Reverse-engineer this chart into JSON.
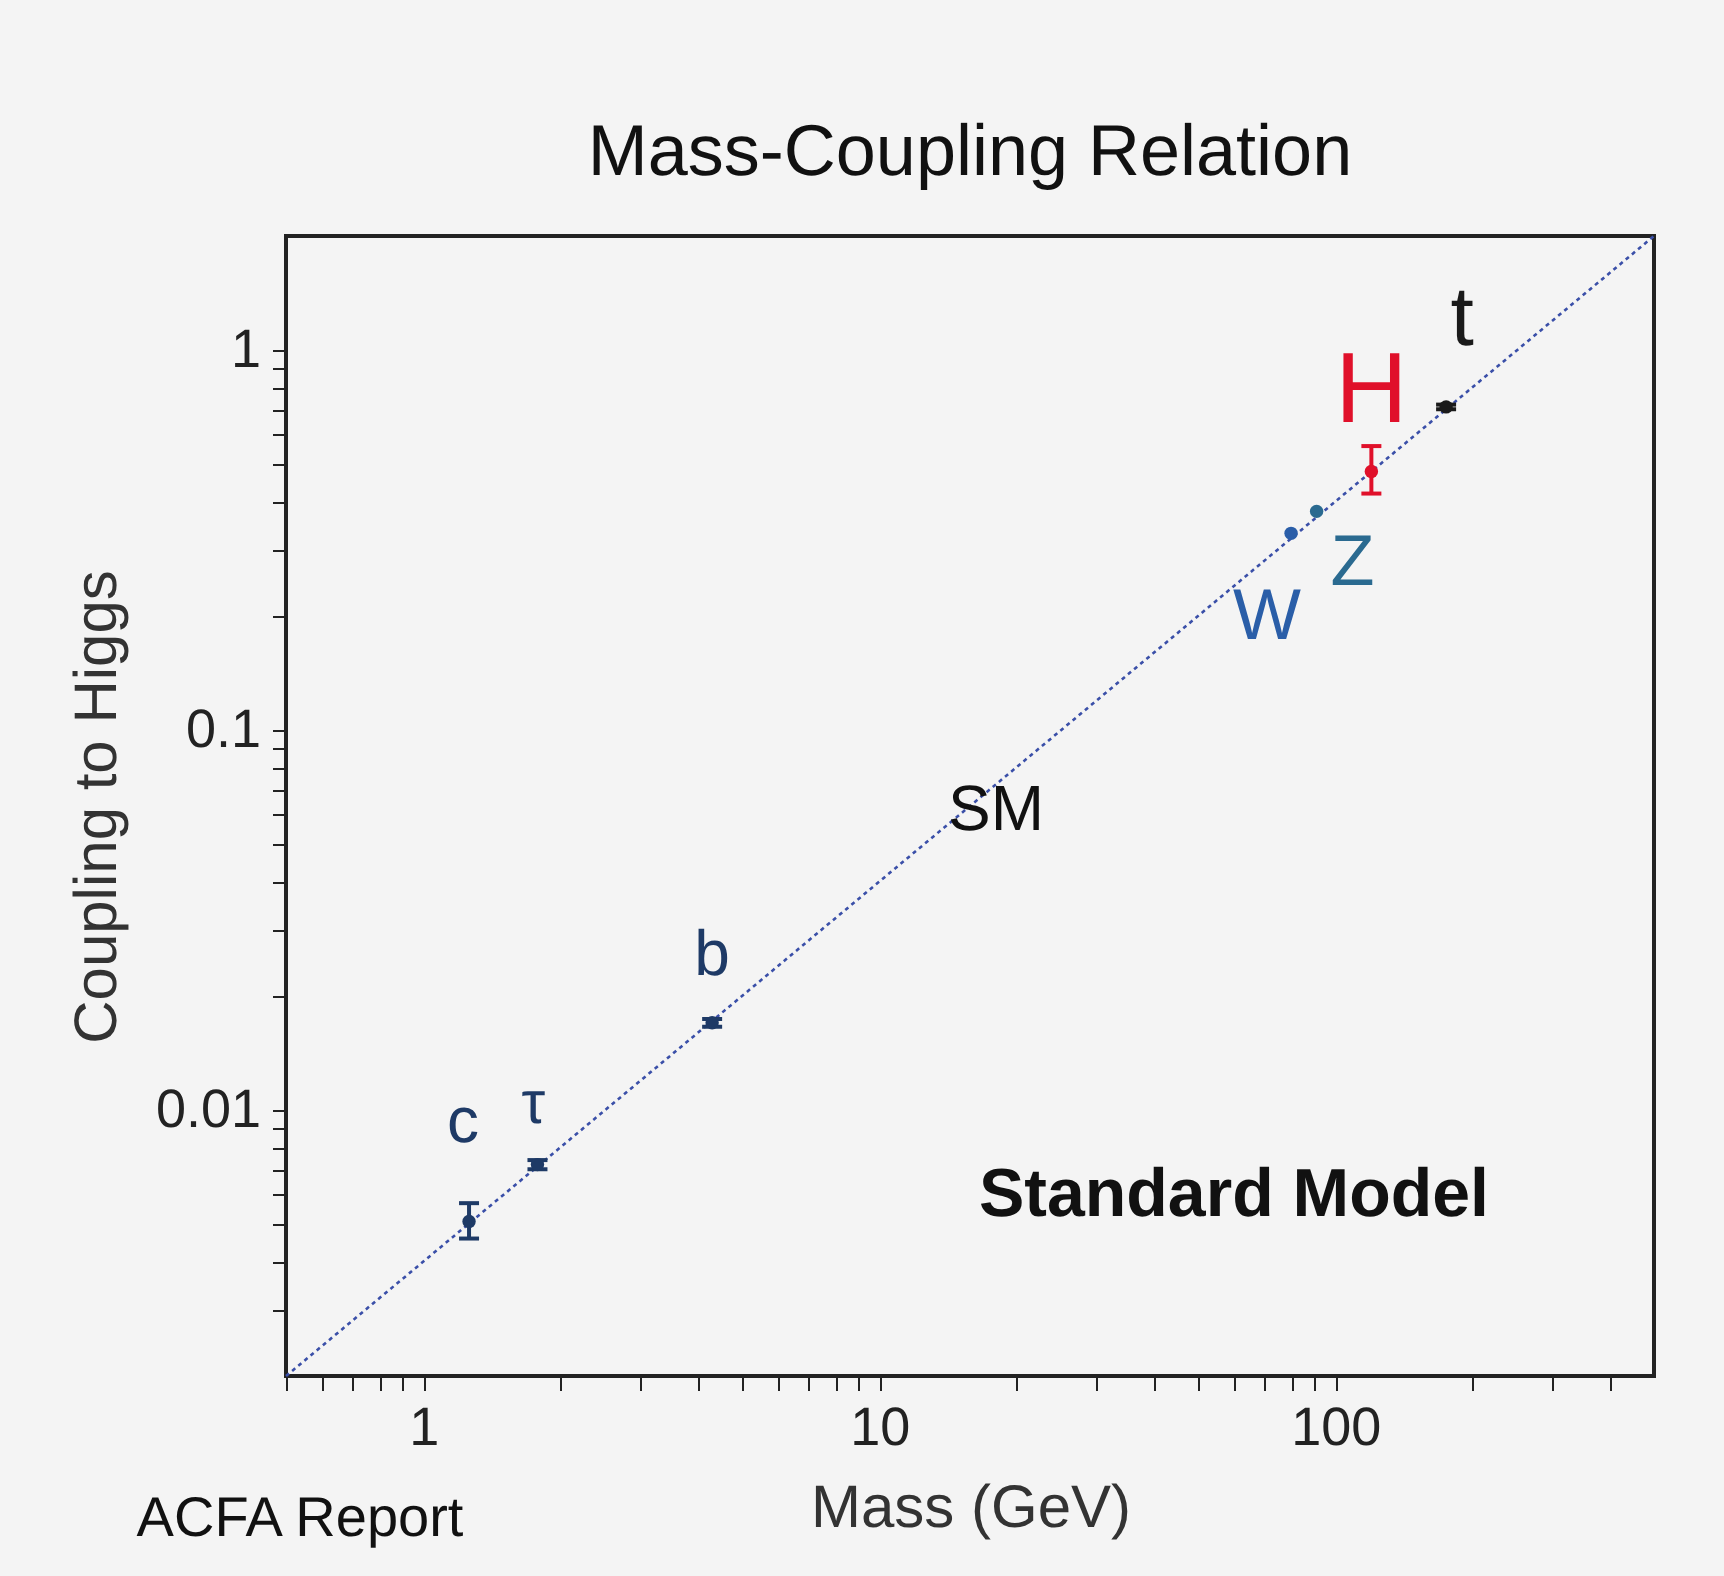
{
  "chart_data": {
    "type": "scatter",
    "title": "Mass-Coupling Relation",
    "xlabel": "Mass (GeV)",
    "ylabel": "Coupling to Higgs",
    "log": "xy",
    "grid": false,
    "marker": "circle",
    "xlim": [
      0.5,
      500
    ],
    "ylim": [
      0.002,
      2
    ],
    "xticks": [
      {
        "value": 0.5,
        "label": null
      },
      {
        "value": 0.6,
        "label": null
      },
      {
        "value": 0.7,
        "label": null
      },
      {
        "value": 0.8,
        "label": null
      },
      {
        "value": 0.9,
        "label": null
      },
      1,
      {
        "value": 2,
        "label": null
      },
      {
        "value": 3,
        "label": null
      },
      {
        "value": 4,
        "label": null
      },
      {
        "value": 5,
        "label": null
      },
      {
        "value": 6,
        "label": null
      },
      {
        "value": 7,
        "label": null
      },
      {
        "value": 8,
        "label": null
      },
      {
        "value": 9,
        "label": null
      },
      10,
      {
        "value": 20,
        "label": null
      },
      {
        "value": 30,
        "label": null
      },
      {
        "value": 40,
        "label": null
      },
      {
        "value": 50,
        "label": null
      },
      {
        "value": 60,
        "label": null
      },
      {
        "value": 70,
        "label": null
      },
      {
        "value": 80,
        "label": null
      },
      {
        "value": 90,
        "label": null
      },
      100,
      {
        "value": 200,
        "label": null
      },
      {
        "value": 300,
        "label": null
      },
      {
        "value": 400,
        "label": null
      }
    ],
    "yticks": [
      {
        "value": 0.003,
        "label": null
      },
      {
        "value": 0.004,
        "label": null
      },
      {
        "value": 0.005,
        "label": null
      },
      {
        "value": 0.006,
        "label": null
      },
      {
        "value": 0.007,
        "label": null
      },
      {
        "value": 0.008,
        "label": null
      },
      {
        "value": 0.009,
        "label": null
      },
      0.01,
      {
        "value": 0.02,
        "label": null
      },
      {
        "value": 0.03,
        "label": null
      },
      {
        "value": 0.04,
        "label": null
      },
      {
        "value": 0.05,
        "label": null
      },
      {
        "value": 0.06,
        "label": null
      },
      {
        "value": 0.07,
        "label": null
      },
      {
        "value": 0.08,
        "label": null
      },
      {
        "value": 0.09,
        "label": null
      },
      0.1,
      {
        "value": 0.2,
        "label": null
      },
      {
        "value": 0.3,
        "label": null
      },
      {
        "value": 0.4,
        "label": null
      },
      {
        "value": 0.5,
        "label": null
      },
      {
        "value": 0.6,
        "label": null
      },
      {
        "value": 0.7,
        "label": null
      },
      {
        "value": 0.8,
        "label": null
      },
      {
        "value": 0.9,
        "label": null
      },
      1
    ],
    "series": [
      {
        "type": "line",
        "color": "#3a4fa8",
        "line_style": "dotted",
        "marker": "none",
        "x": [
          0.5,
          500
        ],
        "values": [
          0.002,
          2
        ]
      },
      {
        "name": "c",
        "color": "#1e3a66",
        "x": [
          1.26
        ],
        "values": [
          0.0051
        ],
        "errors": [
          [
            0.0046,
            0.0057
          ]
        ]
      },
      {
        "name": "τ",
        "color": "#1e3a66",
        "x": [
          1.78
        ],
        "values": [
          0.0072
        ],
        "errors": [
          [
            0.007,
            0.0074
          ]
        ]
      },
      {
        "name": "b",
        "color": "#1e3a66",
        "x": [
          4.3
        ],
        "values": [
          0.017
        ],
        "errors": [
          [
            0.0166,
            0.0174
          ]
        ]
      },
      {
        "name": "W",
        "color": "#2a5ea8",
        "x": [
          80
        ],
        "values": [
          0.33
        ]
      },
      {
        "name": "Z",
        "color": "#2a6a90",
        "x": [
          91
        ],
        "values": [
          0.377
        ]
      },
      {
        "name": "H",
        "color": "#e0102a",
        "x": [
          120
        ],
        "values": [
          0.48
        ],
        "errors": [
          [
            0.42,
            0.56
          ]
        ]
      },
      {
        "name": "t",
        "color": "#1a1a1a",
        "x": [
          175
        ],
        "values": [
          0.71
        ],
        "errors": [
          [
            0.7,
            0.72
          ]
        ]
      }
    ],
    "annotations": [
      "SM",
      "Standard Model",
      "ACFA Report"
    ]
  }
}
